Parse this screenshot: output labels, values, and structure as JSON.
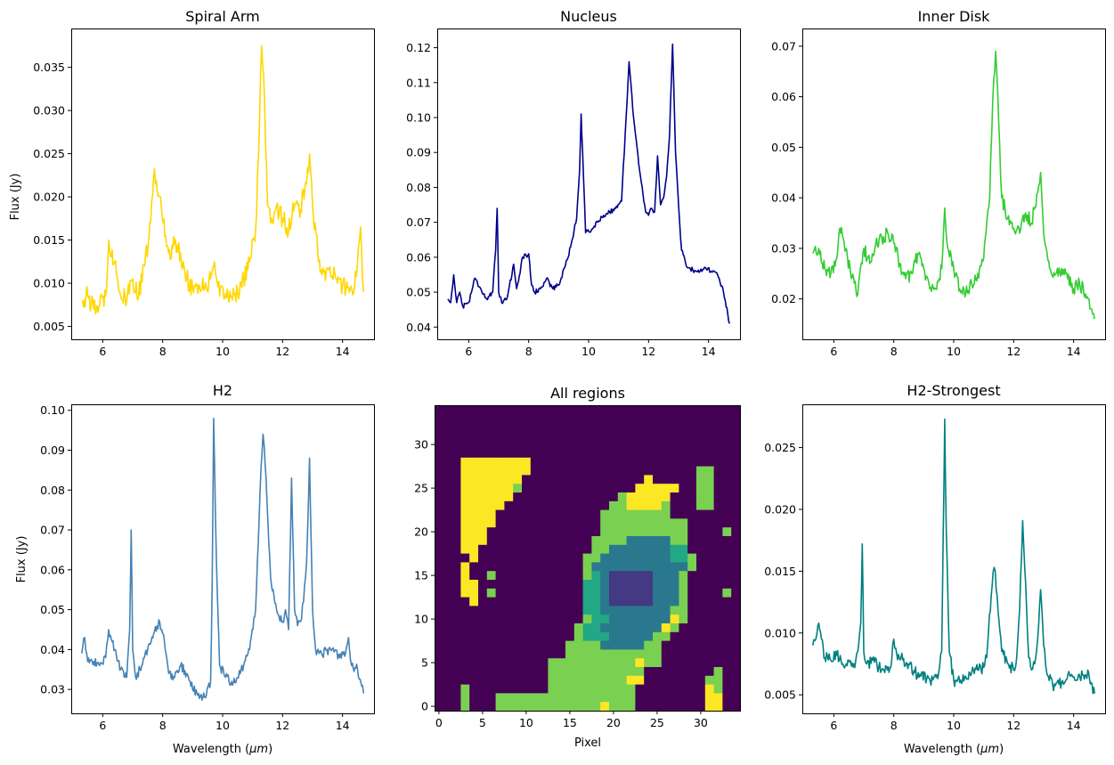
{
  "chart_data": [
    {
      "type": "line",
      "title": "Spiral Arm",
      "xlabel": "",
      "ylabel": "Flux (Jy)",
      "color": "#FFD700",
      "xlim": [
        4.95,
        15.05
      ],
      "ylim": [
        0.0035,
        0.0395
      ],
      "xticks": [
        6,
        8,
        10,
        12,
        14
      ],
      "yticks": [
        0.005,
        0.01,
        0.015,
        0.02,
        0.025,
        0.03,
        0.035
      ],
      "ytick_labels": [
        "0.005",
        "0.010",
        "0.015",
        "0.020",
        "0.025",
        "0.030",
        "0.035"
      ],
      "noise": 0.0012,
      "x": [
        5.3,
        5.5,
        5.7,
        5.9,
        6.1,
        6.2,
        6.4,
        6.6,
        6.8,
        7.0,
        7.2,
        7.4,
        7.6,
        7.7,
        7.9,
        8.1,
        8.2,
        8.4,
        8.6,
        8.8,
        9.0,
        9.2,
        9.4,
        9.6,
        9.7,
        9.9,
        10.1,
        10.3,
        10.5,
        10.7,
        10.9,
        11.1,
        11.2,
        11.3,
        11.4,
        11.5,
        11.6,
        11.8,
        12.0,
        12.2,
        12.4,
        12.6,
        12.8,
        12.9,
        13.0,
        13.2,
        13.4,
        13.6,
        13.8,
        14.0,
        14.2,
        14.4,
        14.5,
        14.6,
        14.7
      ],
      "y": [
        0.008,
        0.0085,
        0.007,
        0.0075,
        0.0085,
        0.015,
        0.0125,
        0.0085,
        0.008,
        0.0105,
        0.0085,
        0.012,
        0.017,
        0.0225,
        0.02,
        0.0155,
        0.0135,
        0.0145,
        0.0135,
        0.0105,
        0.0095,
        0.0098,
        0.0093,
        0.0105,
        0.012,
        0.0085,
        0.0088,
        0.0085,
        0.009,
        0.0105,
        0.0125,
        0.016,
        0.025,
        0.0375,
        0.031,
        0.019,
        0.017,
        0.019,
        0.0175,
        0.016,
        0.019,
        0.0185,
        0.0215,
        0.025,
        0.019,
        0.0125,
        0.0115,
        0.011,
        0.0105,
        0.0098,
        0.0095,
        0.0095,
        0.0125,
        0.0165,
        0.009
      ]
    },
    {
      "type": "line",
      "title": "Nucleus",
      "xlabel": "",
      "ylabel": "",
      "color": "#00008B",
      "xlim": [
        4.95,
        15.05
      ],
      "ylim": [
        0.0365,
        0.1255
      ],
      "xticks": [
        6,
        8,
        10,
        12,
        14
      ],
      "yticks": [
        0.04,
        0.05,
        0.06,
        0.07,
        0.08,
        0.09,
        0.1,
        0.11,
        0.12
      ],
      "ytick_labels": [
        "0.04",
        "0.05",
        "0.06",
        "0.07",
        "0.08",
        "0.09",
        "0.10",
        "0.11",
        "0.12"
      ],
      "noise": 0.0007,
      "x": [
        5.3,
        5.4,
        5.5,
        5.6,
        5.7,
        5.8,
        6.0,
        6.2,
        6.4,
        6.6,
        6.8,
        6.9,
        6.95,
        7.0,
        7.1,
        7.3,
        7.5,
        7.6,
        7.8,
        8.0,
        8.1,
        8.2,
        8.4,
        8.6,
        8.8,
        9.0,
        9.2,
        9.4,
        9.6,
        9.7,
        9.75,
        9.8,
        9.9,
        10.1,
        10.3,
        10.5,
        10.7,
        10.9,
        11.1,
        11.25,
        11.35,
        11.5,
        11.7,
        11.9,
        12.0,
        12.1,
        12.2,
        12.3,
        12.4,
        12.5,
        12.6,
        12.7,
        12.8,
        12.9,
        13.0,
        13.1,
        13.3,
        13.6,
        13.9,
        14.1,
        14.3,
        14.5,
        14.7
      ],
      "y": [
        0.048,
        0.047,
        0.055,
        0.047,
        0.05,
        0.046,
        0.047,
        0.054,
        0.051,
        0.048,
        0.05,
        0.062,
        0.074,
        0.05,
        0.047,
        0.049,
        0.058,
        0.051,
        0.06,
        0.061,
        0.052,
        0.05,
        0.051,
        0.054,
        0.051,
        0.052,
        0.057,
        0.063,
        0.071,
        0.085,
        0.101,
        0.09,
        0.067,
        0.068,
        0.07,
        0.072,
        0.073,
        0.074,
        0.076,
        0.1,
        0.116,
        0.1,
        0.085,
        0.073,
        0.072,
        0.074,
        0.073,
        0.089,
        0.075,
        0.077,
        0.083,
        0.095,
        0.121,
        0.09,
        0.075,
        0.062,
        0.057,
        0.056,
        0.057,
        0.056,
        0.055,
        0.05,
        0.041
      ]
    },
    {
      "type": "line",
      "title": "Inner Disk",
      "xlabel": "",
      "ylabel": "",
      "color": "#32CD32",
      "xlim": [
        4.95,
        15.05
      ],
      "ylim": [
        0.012,
        0.0735
      ],
      "xticks": [
        6,
        8,
        10,
        12,
        14
      ],
      "yticks": [
        0.02,
        0.03,
        0.04,
        0.05,
        0.06,
        0.07
      ],
      "ytick_labels": [
        "0.02",
        "0.03",
        "0.04",
        "0.05",
        "0.06",
        "0.07"
      ],
      "noise": 0.0014,
      "x": [
        5.3,
        5.5,
        5.7,
        5.9,
        6.1,
        6.2,
        6.4,
        6.6,
        6.8,
        7.0,
        7.2,
        7.4,
        7.6,
        7.8,
        8.0,
        8.2,
        8.4,
        8.6,
        8.8,
        9.0,
        9.2,
        9.4,
        9.6,
        9.7,
        9.8,
        10.0,
        10.2,
        10.4,
        10.6,
        10.8,
        11.0,
        11.2,
        11.3,
        11.4,
        11.5,
        11.6,
        11.8,
        12.0,
        12.2,
        12.4,
        12.6,
        12.8,
        12.9,
        13.0,
        13.2,
        13.4,
        13.6,
        13.8,
        14.0,
        14.2,
        14.4,
        14.6,
        14.7
      ],
      "y": [
        0.029,
        0.03,
        0.026,
        0.025,
        0.028,
        0.034,
        0.03,
        0.024,
        0.021,
        0.03,
        0.027,
        0.031,
        0.032,
        0.033,
        0.031,
        0.027,
        0.024,
        0.025,
        0.029,
        0.026,
        0.022,
        0.022,
        0.026,
        0.038,
        0.03,
        0.026,
        0.022,
        0.021,
        0.023,
        0.025,
        0.028,
        0.04,
        0.059,
        0.069,
        0.055,
        0.04,
        0.036,
        0.034,
        0.033,
        0.037,
        0.035,
        0.041,
        0.045,
        0.033,
        0.026,
        0.025,
        0.026,
        0.024,
        0.022,
        0.023,
        0.021,
        0.018,
        0.016
      ]
    },
    {
      "type": "line",
      "title": "H2",
      "xlabel": "Wavelength ($\\mu m$)",
      "ylabel": "Flux (Jy)",
      "color": "#4682B4",
      "xlim": [
        4.95,
        15.05
      ],
      "ylim": [
        0.024,
        0.1015
      ],
      "xticks": [
        6,
        8,
        10,
        12,
        14
      ],
      "yticks": [
        0.03,
        0.04,
        0.05,
        0.06,
        0.07,
        0.08,
        0.09,
        0.1
      ],
      "ytick_labels": [
        "0.03",
        "0.04",
        "0.05",
        "0.06",
        "0.07",
        "0.08",
        "0.09",
        "0.10"
      ],
      "noise": 0.0012,
      "x": [
        5.3,
        5.4,
        5.5,
        5.7,
        5.9,
        6.1,
        6.2,
        6.4,
        6.6,
        6.8,
        6.9,
        6.95,
        7.0,
        7.1,
        7.3,
        7.5,
        7.7,
        7.9,
        8.0,
        8.2,
        8.4,
        8.6,
        8.8,
        9.0,
        9.2,
        9.4,
        9.6,
        9.65,
        9.7,
        9.8,
        9.9,
        10.1,
        10.3,
        10.5,
        10.7,
        10.9,
        11.1,
        11.25,
        11.35,
        11.45,
        11.6,
        11.8,
        12.0,
        12.1,
        12.2,
        12.3,
        12.4,
        12.5,
        12.6,
        12.7,
        12.8,
        12.9,
        13.0,
        13.1,
        13.3,
        13.6,
        13.9,
        14.1,
        14.2,
        14.3,
        14.5,
        14.7
      ],
      "y": [
        0.039,
        0.043,
        0.037,
        0.037,
        0.036,
        0.038,
        0.045,
        0.04,
        0.035,
        0.033,
        0.045,
        0.07,
        0.04,
        0.033,
        0.036,
        0.04,
        0.044,
        0.047,
        0.044,
        0.034,
        0.033,
        0.036,
        0.034,
        0.03,
        0.029,
        0.028,
        0.032,
        0.055,
        0.098,
        0.06,
        0.036,
        0.033,
        0.032,
        0.033,
        0.036,
        0.04,
        0.05,
        0.08,
        0.094,
        0.083,
        0.058,
        0.05,
        0.047,
        0.05,
        0.045,
        0.083,
        0.05,
        0.046,
        0.047,
        0.052,
        0.062,
        0.088,
        0.05,
        0.04,
        0.039,
        0.04,
        0.038,
        0.039,
        0.043,
        0.036,
        0.035,
        0.029
      ]
    },
    {
      "type": "heatmap",
      "title": "All regions",
      "xlabel": "Pixel",
      "ylabel": "",
      "xlim": [
        -0.5,
        34.5
      ],
      "ylim": [
        -0.5,
        34.5
      ],
      "xticks": [
        0,
        5,
        10,
        15,
        20,
        25,
        30
      ],
      "yticks": [
        0,
        5,
        10,
        15,
        20,
        25,
        30
      ],
      "palette": {
        "0": "#440154",
        "1": "#443983",
        "2": "#2A788E",
        "3": "#22A884",
        "4": "#7AD151",
        "5": "#FDE725"
      },
      "legend": "none",
      "rows_top_to_bottom": [
        "00000000000000000000000000000000000",
        "00000000000000000000000000000000000",
        "00000000000000000000000000000000000",
        "00000000000000000000000000000000000",
        "00000000000000000000000000000000000",
        "00000000000000000000000000000000000",
        "00055555555000000000000000000000000",
        "00055555555000000000000000000044000",
        "00055555550000000000000050000044000",
        "00055555540000000000000555550044000",
        "00055555500000000000045555500044000",
        "00055555000000000000445555400044000",
        "00055550000000000004444444400000000",
        "00055550000000000004444444444000000",
        "00055500000000000004444444444000040",
        "00055500000000000044442222244000000",
        "00055000000000000044222222233000000",
        "00005000000000000442222222233400000",
        "00050000000000000422222222222400000",
        "00050040000000000432111112224000000",
        "00055000000000000332111112224000000",
        "00055040000000000332111112224000040",
        "00005000000000000332111112224000000",
        "00000000000000000332222222244000000",
        "00000000000000000433222222254000000",
        "00000000000000004332222222540000000",
        "00000000000000004333222224400000000",
        "00000000000000044442222244000000000",
        "00000000000000044444444444000000000",
        "00000000000004444444444544000000000",
        "00000000000004444444444400000000400",
        "00000000000004444444445500000004400",
        "00040000000004444444444000000005400",
        "00040004444444444444444000000005500",
        "00040004444444444445444000000005500"
      ],
      "ytick_labels": [
        "0",
        "5",
        "10",
        "15",
        "20",
        "25",
        "30"
      ]
    },
    {
      "type": "line",
      "title": "H2-Strongest",
      "xlabel": "Wavelength ($\\mu m$)",
      "ylabel": "",
      "color": "#008080",
      "xlim": [
        4.95,
        15.05
      ],
      "ylim": [
        0.0035,
        0.0285
      ],
      "xticks": [
        6,
        8,
        10,
        12,
        14
      ],
      "yticks": [
        0.005,
        0.01,
        0.015,
        0.02,
        0.025
      ],
      "ytick_labels": [
        "0.005",
        "0.010",
        "0.015",
        "0.020",
        "0.025"
      ],
      "noise": 0.0005,
      "x": [
        5.3,
        5.4,
        5.5,
        5.7,
        5.9,
        6.1,
        6.3,
        6.5,
        6.7,
        6.8,
        6.9,
        6.95,
        7.0,
        7.1,
        7.3,
        7.5,
        7.7,
        7.9,
        8.0,
        8.1,
        8.3,
        8.5,
        8.7,
        8.9,
        9.1,
        9.3,
        9.5,
        9.6,
        9.65,
        9.7,
        9.75,
        9.85,
        10.0,
        10.2,
        10.4,
        10.6,
        10.8,
        11.0,
        11.1,
        11.25,
        11.35,
        11.45,
        11.6,
        11.8,
        12.0,
        12.1,
        12.2,
        12.3,
        12.4,
        12.5,
        12.6,
        12.7,
        12.8,
        12.9,
        13.0,
        13.1,
        13.3,
        13.6,
        13.9,
        14.1,
        14.3,
        14.5,
        14.7
      ],
      "y": [
        0.009,
        0.0095,
        0.0108,
        0.008,
        0.0078,
        0.0082,
        0.0075,
        0.0078,
        0.0072,
        0.0085,
        0.0108,
        0.0172,
        0.0085,
        0.0075,
        0.0078,
        0.0072,
        0.0068,
        0.0072,
        0.0095,
        0.0083,
        0.0078,
        0.0075,
        0.0068,
        0.0065,
        0.0063,
        0.0062,
        0.0068,
        0.0085,
        0.018,
        0.0273,
        0.0185,
        0.0085,
        0.0062,
        0.006,
        0.0065,
        0.0068,
        0.007,
        0.0072,
        0.008,
        0.013,
        0.0153,
        0.013,
        0.0085,
        0.0075,
        0.007,
        0.008,
        0.012,
        0.0191,
        0.014,
        0.008,
        0.007,
        0.0075,
        0.0095,
        0.0135,
        0.009,
        0.0068,
        0.0058,
        0.006,
        0.0065,
        0.0062,
        0.0066,
        0.0068,
        0.0051
      ]
    }
  ]
}
